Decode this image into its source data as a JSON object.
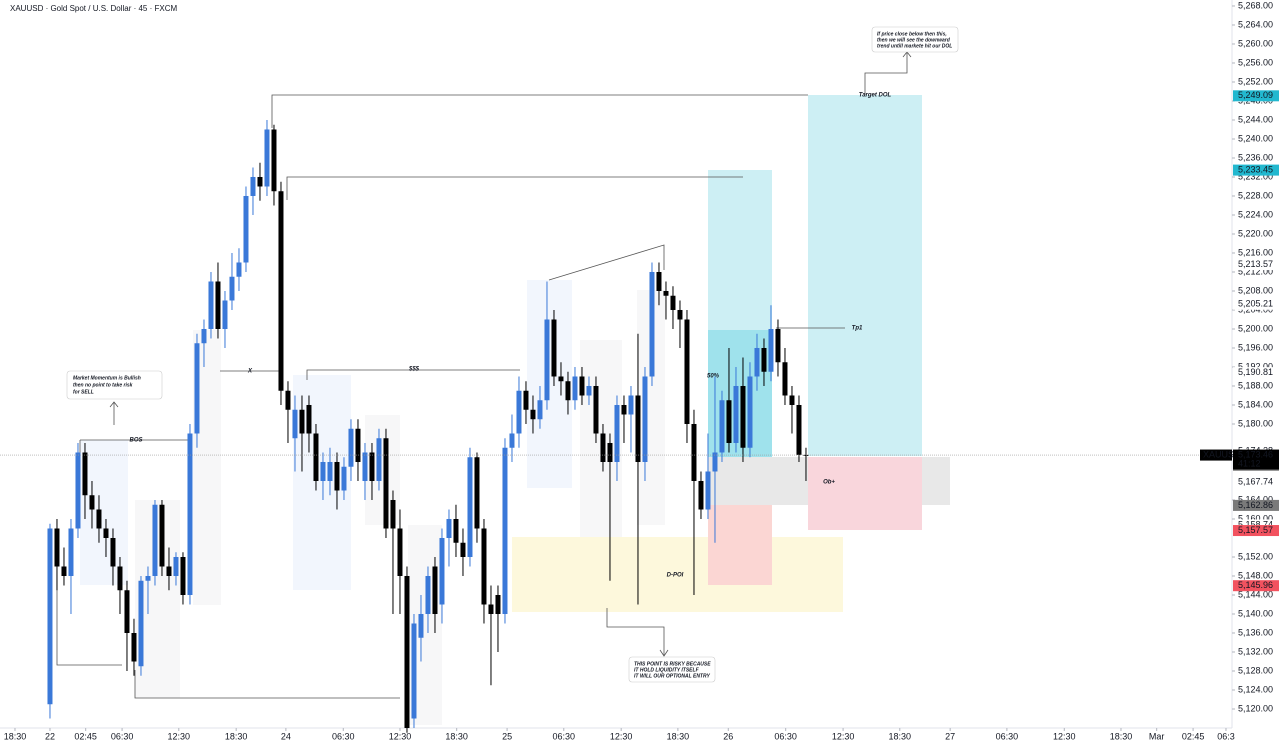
{
  "chart_data": {
    "type": "candlestick",
    "title": "XAUUSD · Gold Spot / U.S. Dollar · 45 · FXCM",
    "up_color": "#3a78d8",
    "down_color": "#000000",
    "xlim": [
      -7.14,
      168.86
    ],
    "ylim": [
      5116,
      5269.26
    ],
    "candles": [
      [
        5121,
        5159,
        5118,
        5158
      ],
      [
        5158,
        5160,
        5145,
        5150
      ],
      [
        5150,
        5154,
        5146,
        5148
      ],
      [
        5148,
        5160,
        5140,
        5158
      ],
      [
        5158,
        5176,
        5156,
        5174
      ],
      [
        5174,
        5176,
        5160,
        5165
      ],
      [
        5165,
        5168,
        5158,
        5162
      ],
      [
        5162,
        5165,
        5155,
        5158
      ],
      [
        5158,
        5160,
        5152,
        5156
      ],
      [
        5156,
        5158,
        5146,
        5150
      ],
      [
        5150,
        5152,
        5140,
        5145
      ],
      [
        5145,
        5147,
        5128,
        5136
      ],
      [
        5136,
        5139,
        5127,
        5130
      ],
      [
        5129,
        5148,
        5127,
        5147
      ],
      [
        5147,
        5150,
        5140,
        5148
      ],
      [
        5148,
        5164,
        5146,
        5163
      ],
      [
        5163,
        5164,
        5148,
        5150
      ],
      [
        5150,
        5154,
        5145,
        5148
      ],
      [
        5148,
        5153,
        5146,
        5152
      ],
      [
        5152,
        5153,
        5142,
        5144
      ],
      [
        5144,
        5180,
        5142,
        5178
      ],
      [
        5178,
        5199,
        5175,
        5197
      ],
      [
        5197,
        5202,
        5192,
        5200
      ],
      [
        5200,
        5212,
        5198,
        5210
      ],
      [
        5210,
        5214,
        5198,
        5200
      ],
      [
        5200,
        5208,
        5196,
        5206
      ],
      [
        5206,
        5216,
        5204,
        5211
      ],
      [
        5211,
        5217,
        5208,
        5214
      ],
      [
        5214,
        5230,
        5212,
        5228
      ],
      [
        5228,
        5234,
        5224,
        5232
      ],
      [
        5232,
        5235,
        5227,
        5230
      ],
      [
        5230,
        5244,
        5228,
        5242
      ],
      [
        5242,
        5243,
        5226,
        5229
      ],
      [
        5229,
        5231,
        5184,
        5187
      ],
      [
        5187,
        5189,
        5176,
        5183
      ],
      [
        5177,
        5186,
        5170,
        5183
      ],
      [
        5183,
        5186,
        5170,
        5178
      ],
      [
        5184,
        5186,
        5174,
        5178
      ],
      [
        5178,
        5180,
        5166,
        5168
      ],
      [
        5168,
        5174,
        5164,
        5172
      ],
      [
        5168,
        5175,
        5165,
        5172
      ],
      [
        5172,
        5174,
        5162,
        5166
      ],
      [
        5166,
        5173,
        5164,
        5171
      ],
      [
        5171,
        5181,
        5168,
        5179
      ],
      [
        5179,
        5181,
        5168,
        5172
      ],
      [
        5168,
        5176,
        5164,
        5174
      ],
      [
        5174,
        5176,
        5164,
        5168
      ],
      [
        5168,
        5179,
        5166,
        5177
      ],
      [
        5177,
        5179,
        5156,
        5158
      ],
      [
        5164,
        5166,
        5140,
        5158
      ],
      [
        5158,
        5162,
        5140,
        5148
      ],
      [
        5148,
        5150,
        5115,
        5116
      ],
      [
        5118,
        5140,
        5116,
        5138
      ],
      [
        5135,
        5144,
        5130,
        5140
      ],
      [
        5140,
        5150,
        5136,
        5148
      ],
      [
        5150,
        5152,
        5136,
        5140
      ],
      [
        5142,
        5158,
        5138,
        5156
      ],
      [
        5156,
        5162,
        5150,
        5160
      ],
      [
        5160,
        5163,
        5152,
        5155
      ],
      [
        5155,
        5158,
        5148,
        5152
      ],
      [
        5152,
        5175,
        5150,
        5173
      ],
      [
        5173,
        5174,
        5155,
        5158
      ],
      [
        5158,
        5160,
        5138,
        5142
      ],
      [
        5142,
        5146,
        5125,
        5140
      ],
      [
        5144,
        5146,
        5132,
        5140
      ],
      [
        5140,
        5177,
        5138,
        5175
      ],
      [
        5175,
        5182,
        5172,
        5178
      ],
      [
        5178,
        5190,
        5175,
        5187
      ],
      [
        5187,
        5189,
        5180,
        5183
      ],
      [
        5183,
        5186,
        5178,
        5181
      ],
      [
        5181,
        5188,
        5179,
        5185
      ],
      [
        5185,
        5210,
        5183,
        5202
      ],
      [
        5202,
        5204,
        5188,
        5190
      ],
      [
        5190,
        5193,
        5186,
        5189
      ],
      [
        5189,
        5191,
        5182,
        5185
      ],
      [
        5185,
        5192,
        5183,
        5190
      ],
      [
        5190,
        5192,
        5184,
        5186
      ],
      [
        5186,
        5190,
        5184,
        5188
      ],
      [
        5188,
        5190,
        5176,
        5178
      ],
      [
        5178,
        5180,
        5170,
        5172
      ],
      [
        5176,
        5178,
        5147,
        5172
      ],
      [
        5172,
        5186,
        5168,
        5184
      ],
      [
        5184,
        5186,
        5176,
        5182
      ],
      [
        5182,
        5188,
        5174,
        5186
      ],
      [
        5186,
        5199,
        5142,
        5172
      ],
      [
        5172,
        5192,
        5168,
        5190
      ],
      [
        5190,
        5214,
        5188,
        5212
      ],
      [
        5212,
        5214,
        5205,
        5208
      ],
      [
        5208,
        5210,
        5202,
        5207
      ],
      [
        5207,
        5209,
        5200,
        5204
      ],
      [
        5204,
        5206,
        5196,
        5202
      ],
      [
        5202,
        5204,
        5176,
        5180
      ],
      [
        5180,
        5183,
        5144,
        5168
      ],
      [
        5168,
        5170,
        5160,
        5162
      ],
      [
        5162,
        5178,
        5160,
        5170
      ],
      [
        5170,
        5190,
        5155,
        5174
      ],
      [
        5174,
        5187,
        5172,
        5185
      ],
      [
        5185,
        5196,
        5174,
        5176
      ],
      [
        5176,
        5192,
        5174,
        5188
      ],
      [
        5188,
        5194,
        5172,
        5175
      ],
      [
        5175,
        5193,
        5173,
        5190
      ],
      [
        5190,
        5199,
        5187,
        5196
      ],
      [
        5196,
        5198,
        5188,
        5191
      ],
      [
        5191,
        5205,
        5189,
        5200
      ],
      [
        5200,
        5202,
        5190,
        5193
      ],
      [
        5193,
        5196,
        5184,
        5186
      ],
      [
        5186,
        5188,
        5178,
        5184
      ],
      [
        5184,
        5186,
        5172,
        5173.5
      ],
      [
        5173.5,
        5175,
        5168,
        5173.46
      ]
    ],
    "xticks": [
      {
        "value": -5,
        "label": "18:30"
      },
      {
        "value": 0,
        "label": "22"
      },
      {
        "value": 5.1,
        "label": "02:45"
      },
      {
        "value": 10.3,
        "label": "06:30"
      },
      {
        "value": 18.4,
        "label": "12:30"
      },
      {
        "value": 26.6,
        "label": "18:30"
      },
      {
        "value": 33.7,
        "label": "24"
      },
      {
        "value": 41.9,
        "label": "06:30"
      },
      {
        "value": 50,
        "label": "12:30"
      },
      {
        "value": 58.1,
        "label": "18:30"
      },
      {
        "value": 65.3,
        "label": "25"
      },
      {
        "value": 73.4,
        "label": "06:30"
      },
      {
        "value": 81.6,
        "label": "12:30"
      },
      {
        "value": 89.7,
        "label": "18:30"
      },
      {
        "value": 96.9,
        "label": "26"
      },
      {
        "value": 105.1,
        "label": "06:30"
      },
      {
        "value": 113.3,
        "label": "12:30"
      },
      {
        "value": 121.4,
        "label": "18:30"
      },
      {
        "value": 128.6,
        "label": "27"
      },
      {
        "value": 136.7,
        "label": "06:30"
      },
      {
        "value": 144.9,
        "label": "12:30"
      },
      {
        "value": 153,
        "label": "18:30"
      },
      {
        "value": 158.1,
        "label": "Mar"
      },
      {
        "value": 163.3,
        "label": "02:45"
      },
      {
        "value": 168,
        "label": "06:3"
      }
    ],
    "yticks": [
      {
        "value": 5120,
        "label": "5,120.00"
      },
      {
        "value": 5124,
        "label": "5,124.00"
      },
      {
        "value": 5128,
        "label": "5,128.00"
      },
      {
        "value": 5132,
        "label": "5,132.00"
      },
      {
        "value": 5136,
        "label": "5,136.00"
      },
      {
        "value": 5140,
        "label": "5,140.00"
      },
      {
        "value": 5144,
        "label": "5,144.00"
      },
      {
        "value": 5148,
        "label": "5,148.00"
      },
      {
        "value": 5152,
        "label": "5,152.00"
      },
      {
        "value": 5160,
        "label": "5,160.00"
      },
      {
        "value": 5164,
        "label": "5,164.00"
      },
      {
        "value": 5180,
        "label": "5,180.00"
      },
      {
        "value": 5184,
        "label": "5,184.00"
      },
      {
        "value": 5188,
        "label": "5,188.00"
      },
      {
        "value": 5192,
        "label": "5,192.00"
      },
      {
        "value": 5196,
        "label": "5,196.00"
      },
      {
        "value": 5200,
        "label": "5,200.00"
      },
      {
        "value": 5204,
        "label": "5,204.00"
      },
      {
        "value": 5208,
        "label": "5,208.00"
      },
      {
        "value": 5212,
        "label": "5,212.00"
      },
      {
        "value": 5216,
        "label": "5,216.00"
      },
      {
        "value": 5220,
        "label": "5,220.00"
      },
      {
        "value": 5224,
        "label": "5,224.00"
      },
      {
        "value": 5228,
        "label": "5,228.00"
      },
      {
        "value": 5232,
        "label": "5,232.00"
      },
      {
        "value": 5236,
        "label": "5,236.00"
      },
      {
        "value": 5240,
        "label": "5,240.00"
      },
      {
        "value": 5244,
        "label": "5,244.00"
      },
      {
        "value": 5248,
        "label": "5,248.00"
      },
      {
        "value": 5252,
        "label": "5,252.00"
      },
      {
        "value": 5256,
        "label": "5,256.00"
      },
      {
        "value": 5260,
        "label": "5,260.00"
      },
      {
        "value": 5264,
        "label": "5,264.00"
      },
      {
        "value": 5268,
        "label": "5,268.00"
      }
    ],
    "price_labels": [
      {
        "value": 5249.09,
        "label": "5,249.09",
        "color": "#22b8cf"
      },
      {
        "value": 5233.45,
        "label": "5,233.45",
        "color": "#22b8cf"
      },
      {
        "value": 5213.57,
        "label": "5,213.57",
        "color": "#ffffff"
      },
      {
        "value": 5205.21,
        "label": "5,205.21",
        "color": "#ffffff"
      },
      {
        "value": 5190.81,
        "label": "5,190.81",
        "color": "#ffffff"
      },
      {
        "value": 5174.28,
        "label": "5,174.28",
        "color": "#ffffff"
      },
      {
        "value": 5171.29,
        "label": "5,171.29",
        "color": "#8a8a8a"
      },
      {
        "value": 5167.74,
        "label": "5,167.74",
        "color": "#ffffff"
      },
      {
        "value": 5162.86,
        "label": "5,162.86",
        "color": "#7a7a7a"
      },
      {
        "value": 5158.74,
        "label": "5,158.74",
        "color": "#ffffff"
      },
      {
        "value": 5157.57,
        "label": "5,157.57",
        "color": "#f2525f"
      },
      {
        "value": 5145.96,
        "label": "5,145.96",
        "color": "#f2525f"
      }
    ],
    "last_price": {
      "symbol": "XAUUSD",
      "value": 5173.46,
      "label": "5,173.46",
      "countdown": "41:12"
    },
    "annotations": {
      "momentum": [
        "Market Momentum is Bullish",
        "then no point to take risk",
        "for SELL"
      ],
      "bos": "BOS",
      "x": "X",
      "liquidity": "$$$",
      "fifty": "50%",
      "tp1": "Tp1",
      "target": "Target DOL",
      "ob": "Ob+",
      "dpoi": "D-POI",
      "dol_note": [
        "If price close below then this,",
        "then we will see the downward",
        "trend untill markete hit our DOL"
      ],
      "risky": [
        "THIS POINT IS RISKY BECAUSE",
        "IT HOLD LIQUIDITY ITSELF",
        "IT WILL OUR OPTIONAL ENTRY"
      ]
    }
  }
}
